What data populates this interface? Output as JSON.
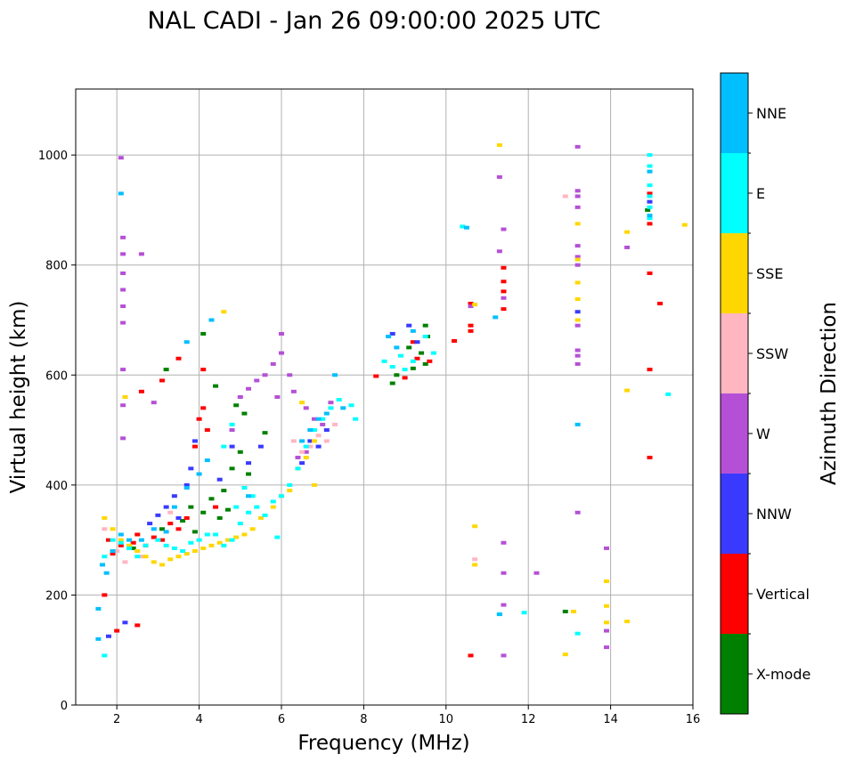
{
  "chart_data": {
    "type": "scatter",
    "title": "NAL CADI - Jan 26 09:00:00 2025 UTC",
    "xlabel": "Frequency (MHz)",
    "ylabel": "Virtual height (km)",
    "xlim": [
      1,
      16
    ],
    "ylim": [
      0,
      1120
    ],
    "xticks": [
      2,
      4,
      6,
      8,
      10,
      12,
      14,
      16
    ],
    "yticks": [
      0,
      200,
      400,
      600,
      800,
      1000
    ],
    "grid": true,
    "colorbar": {
      "label": "Azimuth Direction",
      "placement": "right",
      "categories": [
        {
          "name": "X-mode",
          "color": "#008000"
        },
        {
          "name": "Vertical",
          "color": "#ff0000"
        },
        {
          "name": "NNW",
          "color": "#3a3aff"
        },
        {
          "name": "W",
          "color": "#b550d6"
        },
        {
          "name": "SSW",
          "color": "#ffb6c1"
        },
        {
          "name": "SSE",
          "color": "#ffd700"
        },
        {
          "name": "E",
          "color": "#00ffff"
        },
        {
          "name": "NNE",
          "color": "#00bfff"
        }
      ]
    },
    "series": [
      {
        "name": "X-mode",
        "points": [
          [
            2.4,
            285
          ],
          [
            3.1,
            320
          ],
          [
            3.6,
            335
          ],
          [
            3.8,
            360
          ],
          [
            4.1,
            350
          ],
          [
            4.3,
            375
          ],
          [
            4.5,
            340
          ],
          [
            4.8,
            430
          ],
          [
            4.9,
            545
          ],
          [
            5.2,
            420
          ],
          [
            5.0,
            460
          ],
          [
            5.6,
            495
          ],
          [
            4.6,
            390
          ],
          [
            4.4,
            580
          ],
          [
            4.1,
            675
          ],
          [
            3.2,
            610
          ],
          [
            8.7,
            585
          ],
          [
            8.8,
            600
          ],
          [
            9.1,
            650
          ],
          [
            9.2,
            612
          ],
          [
            9.4,
            640
          ],
          [
            9.5,
            690
          ],
          [
            9.55,
            670
          ],
          [
            9.5,
            620
          ],
          [
            12.9,
            170
          ],
          [
            14.9,
            900
          ],
          [
            4.7,
            355
          ],
          [
            5.1,
            530
          ],
          [
            3.9,
            315
          ]
        ]
      },
      {
        "name": "Vertical",
        "points": [
          [
            1.8,
            300
          ],
          [
            1.9,
            275
          ],
          [
            2.1,
            290
          ],
          [
            2.4,
            295
          ],
          [
            2.5,
            310
          ],
          [
            2.7,
            290
          ],
          [
            2.9,
            305
          ],
          [
            3.1,
            300
          ],
          [
            3.3,
            330
          ],
          [
            3.5,
            320
          ],
          [
            3.7,
            340
          ],
          [
            3.9,
            470
          ],
          [
            4.0,
            520
          ],
          [
            4.1,
            540
          ],
          [
            4.2,
            500
          ],
          [
            4.1,
            610
          ],
          [
            3.1,
            590
          ],
          [
            3.5,
            630
          ],
          [
            2.0,
            135
          ],
          [
            2.5,
            145
          ],
          [
            1.7,
            200
          ],
          [
            2.6,
            570
          ],
          [
            4.4,
            360
          ],
          [
            8.3,
            598
          ],
          [
            9.0,
            595
          ],
          [
            9.2,
            660
          ],
          [
            9.3,
            630
          ],
          [
            9.6,
            625
          ],
          [
            10.2,
            662
          ],
          [
            10.6,
            730
          ],
          [
            10.6,
            690
          ],
          [
            10.6,
            680
          ],
          [
            10.6,
            90
          ],
          [
            11.4,
            770
          ],
          [
            11.4,
            720
          ],
          [
            11.4,
            795
          ],
          [
            11.4,
            752
          ],
          [
            14.95,
            930
          ],
          [
            14.95,
            875
          ],
          [
            14.95,
            785
          ],
          [
            15.2,
            730
          ],
          [
            14.95,
            610
          ],
          [
            14.95,
            450
          ]
        ]
      },
      {
        "name": "NNW",
        "points": [
          [
            2.8,
            330
          ],
          [
            3.0,
            345
          ],
          [
            3.2,
            360
          ],
          [
            3.4,
            380
          ],
          [
            3.5,
            340
          ],
          [
            3.7,
            400
          ],
          [
            3.8,
            430
          ],
          [
            3.9,
            480
          ],
          [
            4.5,
            410
          ],
          [
            4.8,
            470
          ],
          [
            5.2,
            440
          ],
          [
            5.5,
            470
          ],
          [
            6.5,
            440
          ],
          [
            6.7,
            480
          ],
          [
            6.9,
            470
          ],
          [
            7.1,
            500
          ],
          [
            8.7,
            675
          ],
          [
            9.1,
            690
          ],
          [
            9.3,
            660
          ],
          [
            13.2,
            715
          ],
          [
            14.95,
            915
          ],
          [
            2.2,
            150
          ],
          [
            1.8,
            125
          ]
        ]
      },
      {
        "name": "W",
        "points": [
          [
            2.1,
            995
          ],
          [
            2.15,
            850
          ],
          [
            2.15,
            820
          ],
          [
            2.15,
            785
          ],
          [
            2.15,
            755
          ],
          [
            2.15,
            725
          ],
          [
            2.15,
            695
          ],
          [
            2.15,
            610
          ],
          [
            2.15,
            545
          ],
          [
            2.15,
            485
          ],
          [
            2.6,
            820
          ],
          [
            5.2,
            575
          ],
          [
            5.4,
            590
          ],
          [
            5.6,
            600
          ],
          [
            5.8,
            620
          ],
          [
            6.0,
            640
          ],
          [
            6.0,
            675
          ],
          [
            5.9,
            560
          ],
          [
            6.2,
            600
          ],
          [
            6.3,
            570
          ],
          [
            5.0,
            560
          ],
          [
            4.8,
            500
          ],
          [
            6.6,
            540
          ],
          [
            6.8,
            520
          ],
          [
            7.0,
            510
          ],
          [
            7.2,
            550
          ],
          [
            6.4,
            450
          ],
          [
            6.6,
            460
          ],
          [
            10.6,
            725
          ],
          [
            11.3,
            960
          ],
          [
            11.4,
            865
          ],
          [
            11.3,
            825
          ],
          [
            11.4,
            740
          ],
          [
            13.2,
            1015
          ],
          [
            13.2,
            935
          ],
          [
            13.2,
            925
          ],
          [
            13.2,
            905
          ],
          [
            13.2,
            835
          ],
          [
            13.2,
            815
          ],
          [
            13.2,
            800
          ],
          [
            13.2,
            690
          ],
          [
            13.2,
            645
          ],
          [
            13.2,
            635
          ],
          [
            13.2,
            620
          ],
          [
            14.4,
            832
          ],
          [
            11.4,
            295
          ],
          [
            11.4,
            240
          ],
          [
            11.4,
            182
          ],
          [
            11.4,
            90
          ],
          [
            12.2,
            240
          ],
          [
            13.2,
            350
          ],
          [
            13.9,
            285
          ],
          [
            13.9,
            135
          ],
          [
            13.9,
            105
          ],
          [
            2.9,
            550
          ]
        ]
      },
      {
        "name": "SSW",
        "points": [
          [
            1.7,
            320
          ],
          [
            2.0,
            280
          ],
          [
            2.2,
            260
          ],
          [
            2.6,
            270
          ],
          [
            6.3,
            480
          ],
          [
            6.5,
            460
          ],
          [
            6.7,
            470
          ],
          [
            6.9,
            490
          ],
          [
            7.1,
            480
          ],
          [
            7.3,
            510
          ],
          [
            12.9,
            925
          ],
          [
            10.7,
            265
          ],
          [
            3.3,
            350
          ]
        ]
      },
      {
        "name": "SSE",
        "points": [
          [
            1.7,
            340
          ],
          [
            1.9,
            320
          ],
          [
            2.1,
            300
          ],
          [
            2.3,
            290
          ],
          [
            2.5,
            280
          ],
          [
            2.7,
            270
          ],
          [
            2.9,
            260
          ],
          [
            3.1,
            255
          ],
          [
            3.3,
            265
          ],
          [
            3.5,
            270
          ],
          [
            3.7,
            275
          ],
          [
            3.9,
            280
          ],
          [
            4.1,
            285
          ],
          [
            4.3,
            290
          ],
          [
            4.5,
            295
          ],
          [
            4.7,
            300
          ],
          [
            4.9,
            305
          ],
          [
            5.1,
            310
          ],
          [
            5.3,
            320
          ],
          [
            5.5,
            340
          ],
          [
            5.8,
            360
          ],
          [
            6.0,
            380
          ],
          [
            6.2,
            390
          ],
          [
            6.4,
            430
          ],
          [
            6.6,
            450
          ],
          [
            6.8,
            400
          ],
          [
            6.5,
            550
          ],
          [
            6.8,
            480
          ],
          [
            10.7,
            255
          ],
          [
            10.7,
            325
          ],
          [
            12.9,
            92
          ],
          [
            13.1,
            170
          ],
          [
            13.9,
            180
          ],
          [
            13.9,
            150
          ],
          [
            13.9,
            225
          ],
          [
            14.4,
            152
          ],
          [
            14.4,
            860
          ],
          [
            14.4,
            572
          ],
          [
            11.3,
            1018
          ],
          [
            10.7,
            728
          ],
          [
            13.2,
            875
          ],
          [
            13.2,
            810
          ],
          [
            13.2,
            768
          ],
          [
            13.2,
            738
          ],
          [
            13.2,
            700
          ],
          [
            15.8,
            873
          ],
          [
            4.6,
            715
          ],
          [
            2.2,
            560
          ]
        ]
      },
      {
        "name": "E",
        "points": [
          [
            1.7,
            270
          ],
          [
            1.9,
            300
          ],
          [
            2.1,
            295
          ],
          [
            2.3,
            285
          ],
          [
            2.5,
            270
          ],
          [
            2.7,
            290
          ],
          [
            3.0,
            300
          ],
          [
            3.2,
            290
          ],
          [
            3.4,
            285
          ],
          [
            3.6,
            280
          ],
          [
            3.8,
            295
          ],
          [
            4.0,
            300
          ],
          [
            4.2,
            310
          ],
          [
            4.4,
            310
          ],
          [
            4.6,
            290
          ],
          [
            4.8,
            300
          ],
          [
            5.0,
            330
          ],
          [
            5.2,
            350
          ],
          [
            5.4,
            360
          ],
          [
            5.6,
            345
          ],
          [
            5.8,
            370
          ],
          [
            6.0,
            380
          ],
          [
            6.2,
            400
          ],
          [
            6.4,
            430
          ],
          [
            6.6,
            470
          ],
          [
            6.8,
            500
          ],
          [
            7.0,
            520
          ],
          [
            7.2,
            540
          ],
          [
            7.4,
            555
          ],
          [
            7.7,
            545
          ],
          [
            7.8,
            520
          ],
          [
            5.3,
            380
          ],
          [
            5.1,
            395
          ],
          [
            4.9,
            360
          ],
          [
            4.6,
            470
          ],
          [
            4.8,
            510
          ],
          [
            8.5,
            625
          ],
          [
            8.7,
            615
          ],
          [
            8.9,
            635
          ],
          [
            9.0,
            610
          ],
          [
            9.2,
            625
          ],
          [
            9.5,
            670
          ],
          [
            9.7,
            640
          ],
          [
            10.4,
            870
          ],
          [
            11.3,
            165
          ],
          [
            11.9,
            168
          ],
          [
            13.2,
            130
          ],
          [
            14.95,
            1000
          ],
          [
            14.95,
            980
          ],
          [
            14.95,
            945
          ],
          [
            14.95,
            925
          ],
          [
            14.95,
            905
          ],
          [
            14.95,
            885
          ],
          [
            15.4,
            565
          ],
          [
            1.7,
            90
          ],
          [
            5.9,
            305
          ]
        ]
      },
      {
        "name": "NNE",
        "points": [
          [
            1.55,
            175
          ],
          [
            1.55,
            120
          ],
          [
            1.65,
            255
          ],
          [
            1.75,
            240
          ],
          [
            1.9,
            280
          ],
          [
            2.1,
            310
          ],
          [
            2.3,
            300
          ],
          [
            2.6,
            300
          ],
          [
            2.9,
            320
          ],
          [
            3.2,
            315
          ],
          [
            3.4,
            360
          ],
          [
            3.7,
            395
          ],
          [
            4.0,
            420
          ],
          [
            4.2,
            445
          ],
          [
            4.3,
            700
          ],
          [
            3.7,
            660
          ],
          [
            2.1,
            930
          ],
          [
            5.2,
            380
          ],
          [
            6.5,
            480
          ],
          [
            6.7,
            500
          ],
          [
            6.9,
            520
          ],
          [
            7.1,
            530
          ],
          [
            7.3,
            600
          ],
          [
            7.5,
            540
          ],
          [
            8.6,
            670
          ],
          [
            8.8,
            650
          ],
          [
            9.2,
            680
          ],
          [
            10.5,
            868
          ],
          [
            11.2,
            705
          ],
          [
            11.3,
            165
          ],
          [
            13.2,
            510
          ],
          [
            14.95,
            970
          ],
          [
            14.95,
            890
          ]
        ]
      }
    ]
  }
}
